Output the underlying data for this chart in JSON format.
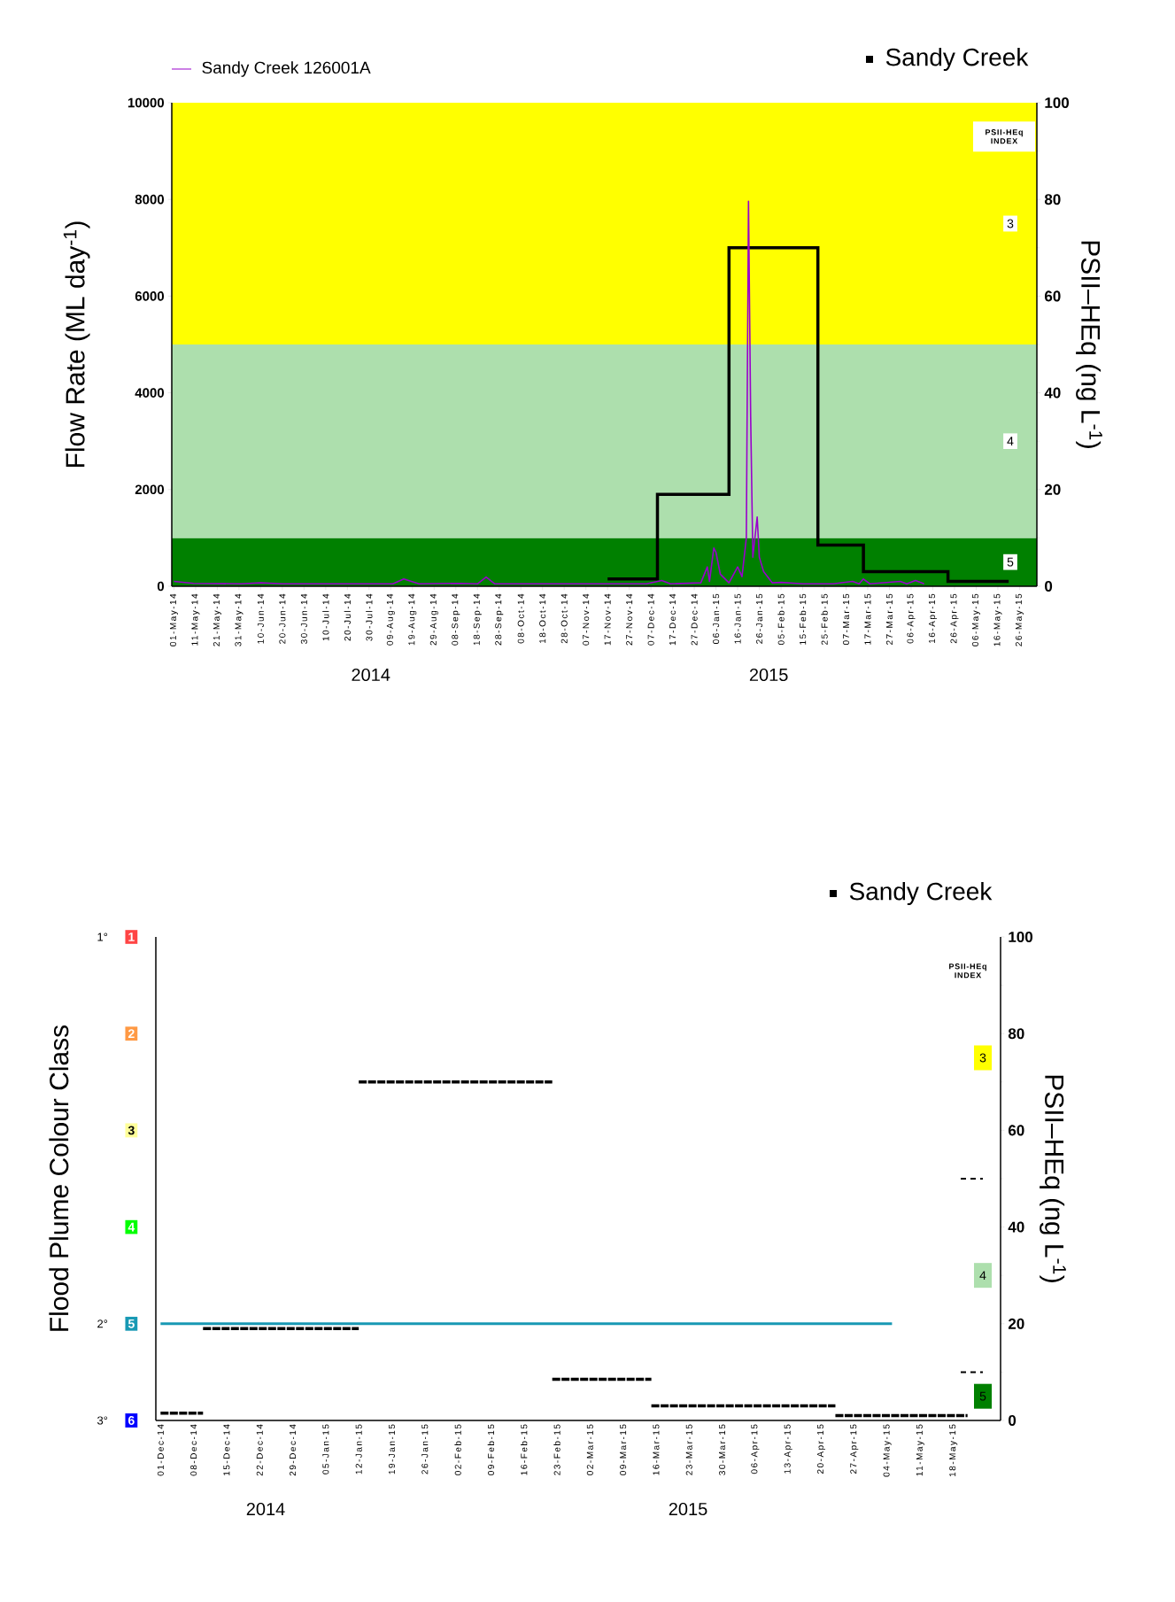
{
  "chart_data": [
    {
      "type": "line",
      "ylabel": "Flow Rate (ML day$^{-1}$)",
      "y2label": "PSII–HEq (ng L$^{-1}$)",
      "legend": "top",
      "grid": false,
      "xlim": [
        "2014-04-30",
        "2015-06-03"
      ],
      "ylim": [
        0,
        10000
      ],
      "yticks": [
        0,
        2000,
        4000,
        6000,
        8000,
        10000
      ],
      "y2lim": [
        0,
        100
      ],
      "y2ticks": [
        0,
        20,
        40,
        60,
        80,
        100
      ],
      "xticks": [
        {
          "value": "2014-05-01",
          "label": "01-May-14"
        },
        {
          "value": "2014-05-11",
          "label": "11-May-14"
        },
        {
          "value": "2014-05-21",
          "label": "21-May-14"
        },
        {
          "value": "2014-05-31",
          "label": "31-May-14"
        },
        {
          "value": "2014-06-10",
          "label": "10-Jun-14"
        },
        {
          "value": "2014-06-20",
          "label": "20-Jun-14"
        },
        {
          "value": "2014-06-30",
          "label": "30-Jun-14"
        },
        {
          "value": "2014-07-10",
          "label": "10-Jul-14"
        },
        {
          "value": "2014-07-20",
          "label": "20-Jul-14"
        },
        {
          "value": "2014-07-30",
          "label": "30-Jul-14"
        },
        {
          "value": "2014-08-09",
          "label": "09-Aug-14"
        },
        {
          "value": "2014-08-19",
          "label": "19-Aug-14"
        },
        {
          "value": "2014-08-29",
          "label": "29-Aug-14"
        },
        {
          "value": "2014-09-08",
          "label": "08-Sep-14"
        },
        {
          "value": "2014-09-18",
          "label": "18-Sep-14"
        },
        {
          "value": "2014-09-28",
          "label": "28-Sep-14"
        },
        {
          "value": "2014-10-08",
          "label": "08-Oct-14"
        },
        {
          "value": "2014-10-18",
          "label": "18-Oct-14"
        },
        {
          "value": "2014-10-28",
          "label": "28-Oct-14"
        },
        {
          "value": "2014-11-07",
          "label": "07-Nov-14"
        },
        {
          "value": "2014-11-17",
          "label": "17-Nov-14"
        },
        {
          "value": "2014-11-27",
          "label": "27-Nov-14"
        },
        {
          "value": "2014-12-07",
          "label": "07-Dec-14"
        },
        {
          "value": "2014-12-17",
          "label": "17-Dec-14"
        },
        {
          "value": "2014-12-27",
          "label": "27-Dec-14"
        },
        {
          "value": "2015-01-06",
          "label": "06-Jan-15"
        },
        {
          "value": "2015-01-16",
          "label": "16-Jan-15"
        },
        {
          "value": "2015-01-26",
          "label": "26-Jan-15"
        },
        {
          "value": "2015-02-05",
          "label": "05-Feb-15"
        },
        {
          "value": "2015-02-15",
          "label": "15-Feb-15"
        },
        {
          "value": "2015-02-25",
          "label": "25-Feb-15"
        },
        {
          "value": "2015-03-07",
          "label": "07-Mar-15"
        },
        {
          "value": "2015-03-17",
          "label": "17-Mar-15"
        },
        {
          "value": "2015-03-27",
          "label": "27-Mar-15"
        },
        {
          "value": "2015-04-06",
          "label": "06-Apr-15"
        },
        {
          "value": "2015-04-16",
          "label": "16-Apr-15"
        },
        {
          "value": "2015-04-26",
          "label": "26-Apr-15"
        },
        {
          "value": "2015-05-06",
          "label": "06-May-15"
        },
        {
          "value": "2015-05-16",
          "label": "16-May-15"
        },
        {
          "value": "2015-05-26",
          "label": "26-May-15"
        }
      ],
      "bands": [
        {
          "axis": "y2",
          "from": 0,
          "to": 10,
          "label": "5",
          "color": "#008000"
        },
        {
          "axis": "y2",
          "from": 10,
          "to": 50,
          "label": "4",
          "color": "#addfad"
        },
        {
          "axis": "y2",
          "from": 50,
          "to": 100,
          "label": "3",
          "color": "#ffff00"
        }
      ],
      "annotations": [
        "PSII-HEq INDEX",
        "2014",
        "2015"
      ],
      "series": [
        {
          "name": "Sandy Creek 126001A",
          "type": "line",
          "color": "#9900cc",
          "x": [
            "2014-05-01",
            "2014-05-10",
            "2014-06-01",
            "2014-06-10",
            "2014-06-20",
            "2014-08-10",
            "2014-08-15",
            "2014-08-22",
            "2014-09-10",
            "2014-09-18",
            "2014-09-22",
            "2014-09-26",
            "2014-12-05",
            "2014-12-12",
            "2014-12-16",
            "2014-12-30",
            "2015-01-02",
            "2015-01-03",
            "2015-01-05",
            "2015-01-06",
            "2015-01-08",
            "2015-01-12",
            "2015-01-16",
            "2015-01-18",
            "2015-01-20",
            "2015-01-21",
            "2015-01-22",
            "2015-01-23",
            "2015-01-25",
            "2015-01-26",
            "2015-01-28",
            "2015-02-01",
            "2015-02-05",
            "2015-02-15",
            "2015-03-01",
            "2015-03-10",
            "2015-03-13",
            "2015-03-15",
            "2015-03-18",
            "2015-04-01",
            "2015-04-04",
            "2015-04-08",
            "2015-04-12"
          ],
          "values": [
            100,
            60,
            50,
            70,
            50,
            50,
            150,
            50,
            60,
            50,
            190,
            50,
            50,
            120,
            50,
            70,
            400,
            100,
            790,
            700,
            250,
            70,
            400,
            200,
            1000,
            7960,
            3500,
            600,
            1430,
            600,
            300,
            70,
            80,
            50,
            50,
            100,
            50,
            150,
            50,
            100,
            50,
            120,
            50
          ]
        },
        {
          "name": "Sandy Creek",
          "type": "step",
          "axis": "y2",
          "color": "#000000",
          "x": [
            "2014-11-17",
            "2014-12-10",
            "2015-01-12",
            "2015-02-22",
            "2015-03-15",
            "2015-04-23",
            "2015-05-21"
          ],
          "values": [
            1.5,
            19,
            70,
            8.5,
            3,
            1,
            1
          ]
        }
      ]
    },
    {
      "type": "line",
      "ylabel": "Flood Plume Colour Class",
      "y2label": "PSII–HEq (ng L$^{-1}$)",
      "legend": "top",
      "grid": false,
      "xlim": [
        "2014-11-30",
        "2015-05-28"
      ],
      "ylim": [
        6,
        1
      ],
      "yticks": [
        1,
        2,
        3,
        4,
        5,
        6
      ],
      "y2lim": [
        0,
        100
      ],
      "y2ticks": [
        0,
        20,
        40,
        60,
        80,
        100
      ],
      "xticks": [
        {
          "value": "2014-12-01",
          "label": "01-Dec-14"
        },
        {
          "value": "2014-12-08",
          "label": "08-Dec-14"
        },
        {
          "value": "2014-12-15",
          "label": "15-Dec-14"
        },
        {
          "value": "2014-12-22",
          "label": "22-Dec-14"
        },
        {
          "value": "2014-12-29",
          "label": "29-Dec-14"
        },
        {
          "value": "2015-01-05",
          "label": "05-Jan-15"
        },
        {
          "value": "2015-01-12",
          "label": "12-Jan-15"
        },
        {
          "value": "2015-01-19",
          "label": "19-Jan-15"
        },
        {
          "value": "2015-01-26",
          "label": "26-Jan-15"
        },
        {
          "value": "2015-02-02",
          "label": "02-Feb-15"
        },
        {
          "value": "2015-02-09",
          "label": "09-Feb-15"
        },
        {
          "value": "2015-02-16",
          "label": "16-Feb-15"
        },
        {
          "value": "2015-02-23",
          "label": "23-Feb-15"
        },
        {
          "value": "2015-03-02",
          "label": "02-Mar-15"
        },
        {
          "value": "2015-03-09",
          "label": "09-Mar-15"
        },
        {
          "value": "2015-03-16",
          "label": "16-Mar-15"
        },
        {
          "value": "2015-03-23",
          "label": "23-Mar-15"
        },
        {
          "value": "2015-03-30",
          "label": "30-Mar-15"
        },
        {
          "value": "2015-04-06",
          "label": "06-Apr-15"
        },
        {
          "value": "2015-04-13",
          "label": "13-Apr-15"
        },
        {
          "value": "2015-04-20",
          "label": "20-Apr-15"
        },
        {
          "value": "2015-04-27",
          "label": "27-Apr-15"
        },
        {
          "value": "2015-05-04",
          "label": "04-May-15"
        },
        {
          "value": "2015-05-11",
          "label": "11-May-15"
        },
        {
          "value": "2015-05-18",
          "label": "18-May-15"
        }
      ],
      "annotations": [
        "PSII-HEq INDEX",
        "3",
        "4",
        "5",
        "1°",
        "2°",
        "3°",
        "2014",
        "2015"
      ],
      "series": [
        {
          "type": "line",
          "color": "#1899b4",
          "x": [
            "2014-12-01",
            "2015-05-05"
          ],
          "values": [
            5,
            5
          ]
        },
        {
          "name": "Sandy Creek",
          "type": "step",
          "axis": "y2",
          "line_style": "dashed",
          "color": "#000000",
          "x": [
            "2014-12-01",
            "2014-12-10",
            "2015-01-12",
            "2015-02-22",
            "2015-03-15",
            "2015-04-23",
            "2015-05-21"
          ],
          "values": [
            1.5,
            19,
            70,
            8.5,
            3,
            1,
            1
          ]
        }
      ]
    }
  ]
}
